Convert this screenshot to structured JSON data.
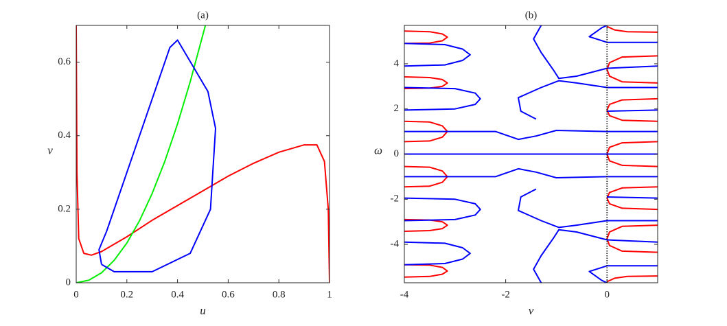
{
  "chart_data": [
    {
      "type": "line",
      "title": "(a)",
      "x_label": "u",
      "y_label": "v",
      "xlim": [
        0,
        1
      ],
      "ylim": [
        0,
        0.7
      ],
      "xticks": [
        0,
        0.2,
        0.4,
        0.6,
        0.8,
        1
      ],
      "yticks": [
        0,
        0.2,
        0.4,
        0.6
      ],
      "series": [
        {
          "color": "#ff0000",
          "x": [
            0,
            0.003,
            0.01,
            0.03,
            0.06,
            0.1,
            0.2,
            0.3,
            0.4,
            0.5,
            0.6,
            0.7,
            0.8,
            0.9,
            0.95,
            0.98,
            0.995,
            1
          ],
          "values": [
            0.7,
            0.3,
            0.12,
            0.08,
            0.075,
            0.085,
            0.125,
            0.17,
            0.21,
            0.25,
            0.29,
            0.325,
            0.355,
            0.375,
            0.375,
            0.33,
            0.2,
            0
          ]
        },
        {
          "color": "#00ee00",
          "x": [
            0,
            0.05,
            0.1,
            0.15,
            0.2,
            0.25,
            0.3,
            0.35,
            0.4,
            0.45,
            0.51
          ],
          "values": [
            0,
            0.007,
            0.027,
            0.061,
            0.108,
            0.169,
            0.243,
            0.331,
            0.432,
            0.547,
            0.7
          ]
        },
        {
          "color": "#0000ff",
          "x": [
            0.1,
            0.15,
            0.3,
            0.45,
            0.53,
            0.55,
            0.52,
            0.4,
            0.37,
            0.3,
            0.2,
            0.12,
            0.09,
            0.1
          ],
          "values": [
            0.05,
            0.03,
            0.03,
            0.08,
            0.2,
            0.42,
            0.52,
            0.66,
            0.64,
            0.5,
            0.3,
            0.14,
            0.09,
            0.05
          ]
        }
      ]
    },
    {
      "type": "line",
      "title": "(b)",
      "x_label": "ν",
      "y_label": "ω",
      "xlim": [
        -4,
        1
      ],
      "ylim": [
        -5.7,
        5.7
      ],
      "xticks": [
        -4,
        -2,
        0
      ],
      "yticks": [
        -4,
        -2,
        0,
        2,
        4
      ],
      "series": [
        {
          "color": "#ff0000",
          "x": [
            -4,
            -3.5,
            -3.25,
            -3.15,
            -3.25,
            -3.5,
            -4,
            null,
            -4,
            -3.5,
            -3.25,
            -3.15,
            -3.25,
            -3.5,
            -4,
            null,
            -4,
            -3.5,
            -3.25,
            -3.15,
            -3.25,
            -3.5,
            -4,
            null,
            -4,
            -3.5,
            -3.25,
            -3.15,
            -3.25,
            -3.5,
            -4,
            null,
            -4,
            -3.5,
            -3.25,
            -3.15,
            -3.25,
            -3.5,
            -4,
            null,
            -4,
            -3.5,
            -3.25,
            -3.15,
            -3.25,
            -3.5,
            -4,
            null,
            0,
            0.15,
            0.4,
            1,
            null,
            1,
            0.3,
            0.05,
            0,
            0.05,
            0.3,
            1,
            null,
            1,
            0.3,
            0.05,
            0,
            0.05,
            0.3,
            1,
            null,
            1,
            0.3,
            0.05,
            0,
            0.05,
            0.3,
            1,
            null,
            1,
            0.3,
            0.05,
            0,
            0.05,
            0.3,
            1,
            null,
            1,
            0.3,
            0.05,
            0,
            0.05,
            0.3,
            1,
            null,
            0,
            0.15,
            0.4,
            1
          ],
          "values": [
            5.45,
            5.42,
            5.32,
            5.18,
            5.02,
            4.92,
            4.9,
            null,
            3.42,
            3.39,
            3.3,
            3.15,
            3.0,
            2.92,
            2.9,
            null,
            1.45,
            1.42,
            1.25,
            1.0,
            0.75,
            0.58,
            0.55,
            null,
            -0.55,
            -0.58,
            -0.75,
            -1.0,
            -1.25,
            -1.42,
            -1.45,
            null,
            -2.9,
            -2.92,
            -3.0,
            -3.15,
            -3.3,
            -3.39,
            -3.42,
            null,
            -4.9,
            -4.92,
            -5.02,
            -5.18,
            -5.32,
            -5.42,
            -5.45,
            null,
            5.65,
            5.5,
            5.42,
            5.4,
            null,
            4.35,
            4.3,
            4.05,
            3.75,
            3.45,
            3.2,
            3.15,
            null,
            2.45,
            2.4,
            2.2,
            1.95,
            1.7,
            1.5,
            1.45,
            null,
            0.55,
            0.5,
            0.3,
            0,
            -0.3,
            -0.5,
            -0.55,
            null,
            -1.45,
            -1.5,
            -1.7,
            -1.95,
            -2.2,
            -2.4,
            -2.45,
            null,
            -3.15,
            -3.2,
            -3.45,
            -3.75,
            -4.05,
            -4.3,
            -4.35,
            null,
            -5.65,
            -5.5,
            -5.42,
            -5.4
          ]
        },
        {
          "color": "#0000ff",
          "x": [
            -4,
            1,
            null,
            -4,
            -2.2,
            -1.75,
            -1.4,
            -1.0,
            0,
            1,
            null,
            -4,
            -2.2,
            -1.75,
            -1.4,
            -1.0,
            0,
            1,
            null,
            -4,
            -3.2,
            -2.85,
            -2.7,
            -2.85,
            -3.2,
            -4,
            null,
            -4,
            -3.2,
            -2.85,
            -2.7,
            -2.85,
            -3.2,
            -4,
            null,
            -4,
            -3.0,
            -2.6,
            -2.5,
            -2.6,
            -3.0,
            -4,
            null,
            -4,
            -3.0,
            -2.6,
            -2.5,
            -2.6,
            -3.0,
            -4,
            null,
            -1.3,
            -1.45,
            -1.3,
            -1.05,
            -0.95,
            -0.6,
            0,
            1,
            null,
            -1.3,
            -1.45,
            -1.3,
            -1.05,
            -0.95,
            -0.6,
            0,
            1,
            null,
            1,
            0,
            -0.6,
            -0.95,
            -1.3,
            -1.75,
            -1.7,
            -1.4,
            null,
            1,
            0,
            -0.6,
            -0.95,
            -1.3,
            -1.75,
            -1.7,
            -1.4,
            null,
            1,
            0,
            -0.35,
            -0.1,
            0,
            null,
            1,
            0,
            -0.35,
            -0.1,
            0,
            null,
            1,
            0,
            null,
            1,
            0
          ],
          "values": [
            0,
            0,
            null,
            1.0,
            1.0,
            0.65,
            0.8,
            1.05,
            1.0,
            1.0,
            null,
            -1.0,
            -1.0,
            -0.65,
            -0.8,
            -1.05,
            -1.0,
            -1.0,
            null,
            4.9,
            4.85,
            4.65,
            4.4,
            4.15,
            3.95,
            3.9,
            null,
            -4.9,
            -4.85,
            -4.65,
            -4.4,
            -4.15,
            -3.95,
            -3.9,
            null,
            2.95,
            2.9,
            2.7,
            2.45,
            2.2,
            2.0,
            1.95,
            null,
            -2.95,
            -2.9,
            -2.7,
            -2.45,
            -2.2,
            -2.0,
            -1.95,
            null,
            5.7,
            5.1,
            4.5,
            3.7,
            3.35,
            3.45,
            3.8,
            3.9,
            null,
            -5.7,
            -5.1,
            -4.5,
            -3.7,
            -3.35,
            -3.45,
            -3.8,
            -3.9,
            null,
            2.95,
            2.95,
            3.15,
            3.25,
            2.95,
            2.5,
            1.9,
            1.55,
            null,
            -2.95,
            -2.95,
            -3.15,
            -3.25,
            -2.95,
            -2.5,
            -1.9,
            -1.55,
            null,
            4.95,
            4.95,
            5.2,
            5.6,
            5.7,
            null,
            -4.95,
            -4.95,
            -5.2,
            -5.6,
            -5.7,
            null,
            1.95,
            1.9,
            null,
            -1.95,
            -1.9
          ]
        },
        {
          "color": "#000000",
          "style": "dotted",
          "x": [
            0,
            0
          ],
          "values": [
            -5.7,
            5.7
          ]
        }
      ]
    }
  ]
}
